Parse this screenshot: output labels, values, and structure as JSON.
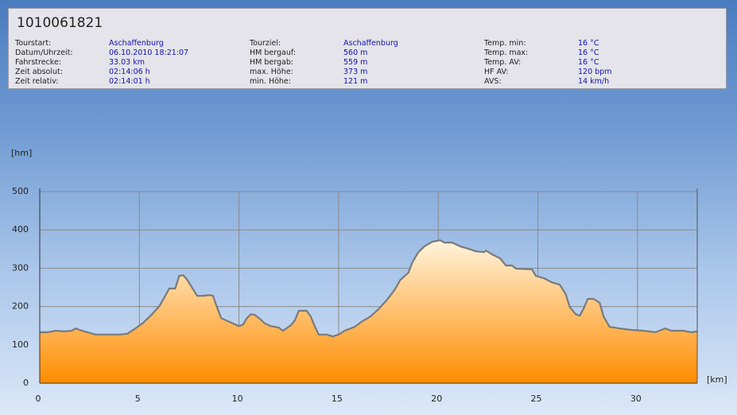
{
  "info": {
    "title": "1010061821",
    "columns": [
      {
        "rows": [
          {
            "label": "Tourstart:",
            "value": "Aschaffenburg"
          },
          {
            "label": "Datum/Uhrzeit:",
            "value": "06.10.2010 18:21:07"
          },
          {
            "label": "Fahrstrecke:",
            "value": "33.03 km"
          },
          {
            "label": "Zeit absolut:",
            "value": "02:14:06 h"
          },
          {
            "label": "Zeit relativ:",
            "value": "02:14:01 h"
          }
        ]
      },
      {
        "rows": [
          {
            "label": "Tourziel:",
            "value": "Aschaffenburg"
          },
          {
            "label": "HM bergauf:",
            "value": "560 m"
          },
          {
            "label": "HM bergab:",
            "value": "559 m"
          },
          {
            "label": "max. Höhe:",
            "value": "373 m"
          },
          {
            "label": "min. Höhe:",
            "value": "121 m"
          }
        ]
      },
      {
        "rows": [
          {
            "label": "Temp. min:",
            "value": "16 °C"
          },
          {
            "label": "Temp. max:",
            "value": "16 °C"
          },
          {
            "label": "Temp. AV:",
            "value": "16 °C"
          },
          {
            "label": "HF AV:",
            "value": "120 bpm"
          },
          {
            "label": "AVS:",
            "value": "14 km/h"
          }
        ]
      }
    ]
  },
  "chart_data": {
    "type": "area",
    "y_label": "[hm]",
    "x_label": "[km]",
    "x": [
      0,
      0.4,
      0.8,
      1.2,
      1.6,
      1.8,
      2.0,
      2.4,
      2.8,
      3.2,
      3.6,
      4.0,
      4.4,
      4.8,
      5.2,
      5.6,
      6.0,
      6.3,
      6.5,
      6.8,
      7.0,
      7.2,
      7.4,
      7.6,
      7.9,
      8.2,
      8.5,
      8.7,
      8.8,
      9.1,
      9.6,
      10.0,
      10.2,
      10.4,
      10.6,
      10.8,
      11.0,
      11.3,
      11.6,
      12.0,
      12.2,
      12.6,
      12.8,
      13.0,
      13.4,
      13.6,
      13.8,
      14.0,
      14.4,
      14.7,
      15.0,
      15.3,
      15.8,
      16.2,
      16.6,
      17.0,
      17.4,
      17.8,
      18.1,
      18.5,
      18.7,
      19.0,
      19.3,
      19.7,
      20.1,
      20.3,
      20.7,
      21.1,
      21.5,
      21.9,
      22.3,
      22.4,
      22.7,
      23.1,
      23.4,
      23.7,
      23.9,
      24.7,
      24.9,
      25.3,
      25.7,
      26.1,
      26.4,
      26.6,
      26.9,
      27.1,
      27.3,
      27.5,
      27.8,
      28.1,
      28.3,
      28.6,
      29.1,
      29.7,
      30.3,
      30.9,
      31.4,
      31.7,
      32.3,
      32.7,
      33.0
    ],
    "values": [
      133,
      133,
      137,
      135,
      137,
      143,
      139,
      133,
      127,
      127,
      127,
      127,
      129,
      143,
      158,
      178,
      201,
      228,
      247,
      247,
      280,
      282,
      270,
      253,
      228,
      228,
      230,
      228,
      212,
      170,
      158,
      149,
      153,
      170,
      180,
      178,
      170,
      156,
      149,
      145,
      137,
      151,
      164,
      189,
      189,
      174,
      149,
      127,
      127,
      122,
      127,
      137,
      147,
      162,
      174,
      193,
      216,
      243,
      270,
      288,
      315,
      342,
      357,
      369,
      373,
      367,
      367,
      357,
      351,
      344,
      342,
      346,
      336,
      326,
      307,
      307,
      299,
      297,
      280,
      274,
      263,
      257,
      232,
      199,
      180,
      176,
      195,
      220,
      220,
      210,
      174,
      147,
      143,
      139,
      137,
      133,
      143,
      137,
      137,
      133,
      135
    ],
    "color": "#ff8c00",
    "line_color": "#7a7a7a",
    "xlim": [
      0,
      33
    ],
    "xticks": [
      0,
      5,
      10,
      15,
      20,
      25,
      30
    ],
    "ylim": [
      0,
      500
    ],
    "yticks": [
      0,
      100,
      200,
      300,
      400,
      500
    ],
    "grid": true
  }
}
